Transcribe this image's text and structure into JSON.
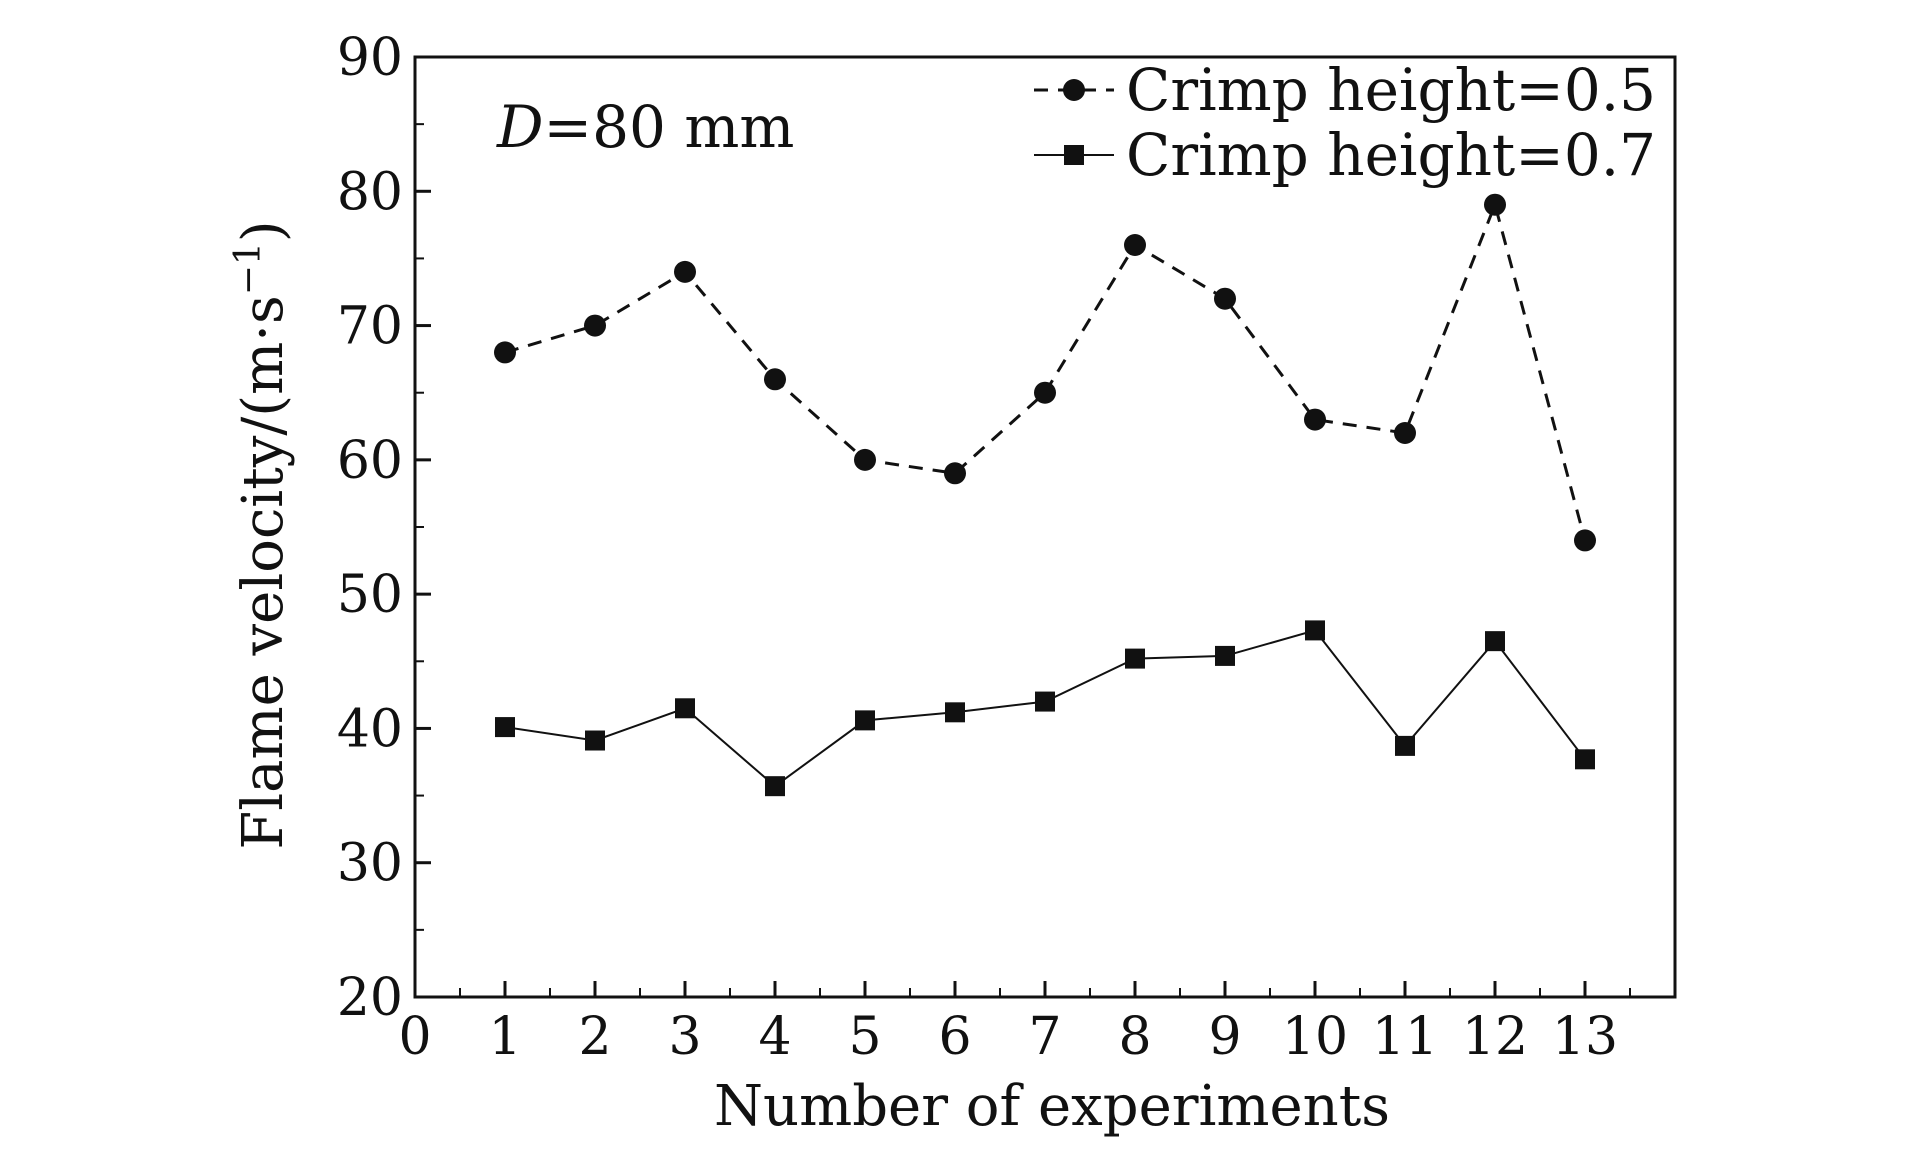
{
  "chart_data": {
    "type": "line",
    "xlabel": "Number of experiments",
    "ylabel_main": "Flame velocity/(m·s",
    "ylabel_sup": "−1",
    "ylabel_close": ")",
    "annotation": {
      "italic": "D",
      "rest": "=80 mm"
    },
    "xlim": [
      0,
      14
    ],
    "ylim": [
      20,
      90
    ],
    "x_ticks": [
      0,
      1,
      2,
      3,
      4,
      5,
      6,
      7,
      8,
      9,
      10,
      11,
      12,
      13
    ],
    "y_ticks": [
      20,
      30,
      40,
      50,
      60,
      70,
      80,
      90
    ],
    "grid": false,
    "legend_position": "top-right",
    "x": [
      1,
      2,
      3,
      4,
      5,
      6,
      7,
      8,
      9,
      10,
      11,
      12,
      13
    ],
    "series": [
      {
        "name": "Crimp height=0.5",
        "marker": "circle",
        "line_style": "dashed",
        "color": "#111111",
        "values": [
          68,
          70,
          74,
          66,
          60,
          59,
          65,
          76,
          72,
          63,
          62,
          79,
          54
        ]
      },
      {
        "name": "Crimp height=0.7",
        "marker": "square",
        "line_style": "solid",
        "color": "#111111",
        "values": [
          40.1,
          39.1,
          41.5,
          35.7,
          40.6,
          41.2,
          42.0,
          45.2,
          45.4,
          47.3,
          38.7,
          46.5,
          37.7
        ]
      }
    ]
  }
}
